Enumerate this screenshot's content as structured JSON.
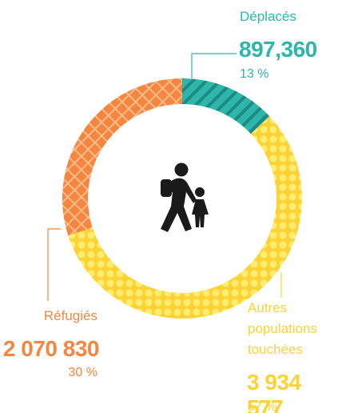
{
  "chart_data": {
    "type": "donut",
    "categories": [
      "Déplacés",
      "Autres populations touchées",
      "Réfugiés"
    ],
    "values": [
      13,
      57,
      30
    ],
    "value_labels": [
      "13 %",
      "57 %",
      "30 %"
    ],
    "counts": [
      897360,
      3934577,
      2070830
    ],
    "count_labels": [
      "897,360",
      "3 934 577",
      "2 070 830"
    ],
    "colors": [
      "#2db6a9",
      "#fdd235",
      "#f5863f"
    ]
  }
}
